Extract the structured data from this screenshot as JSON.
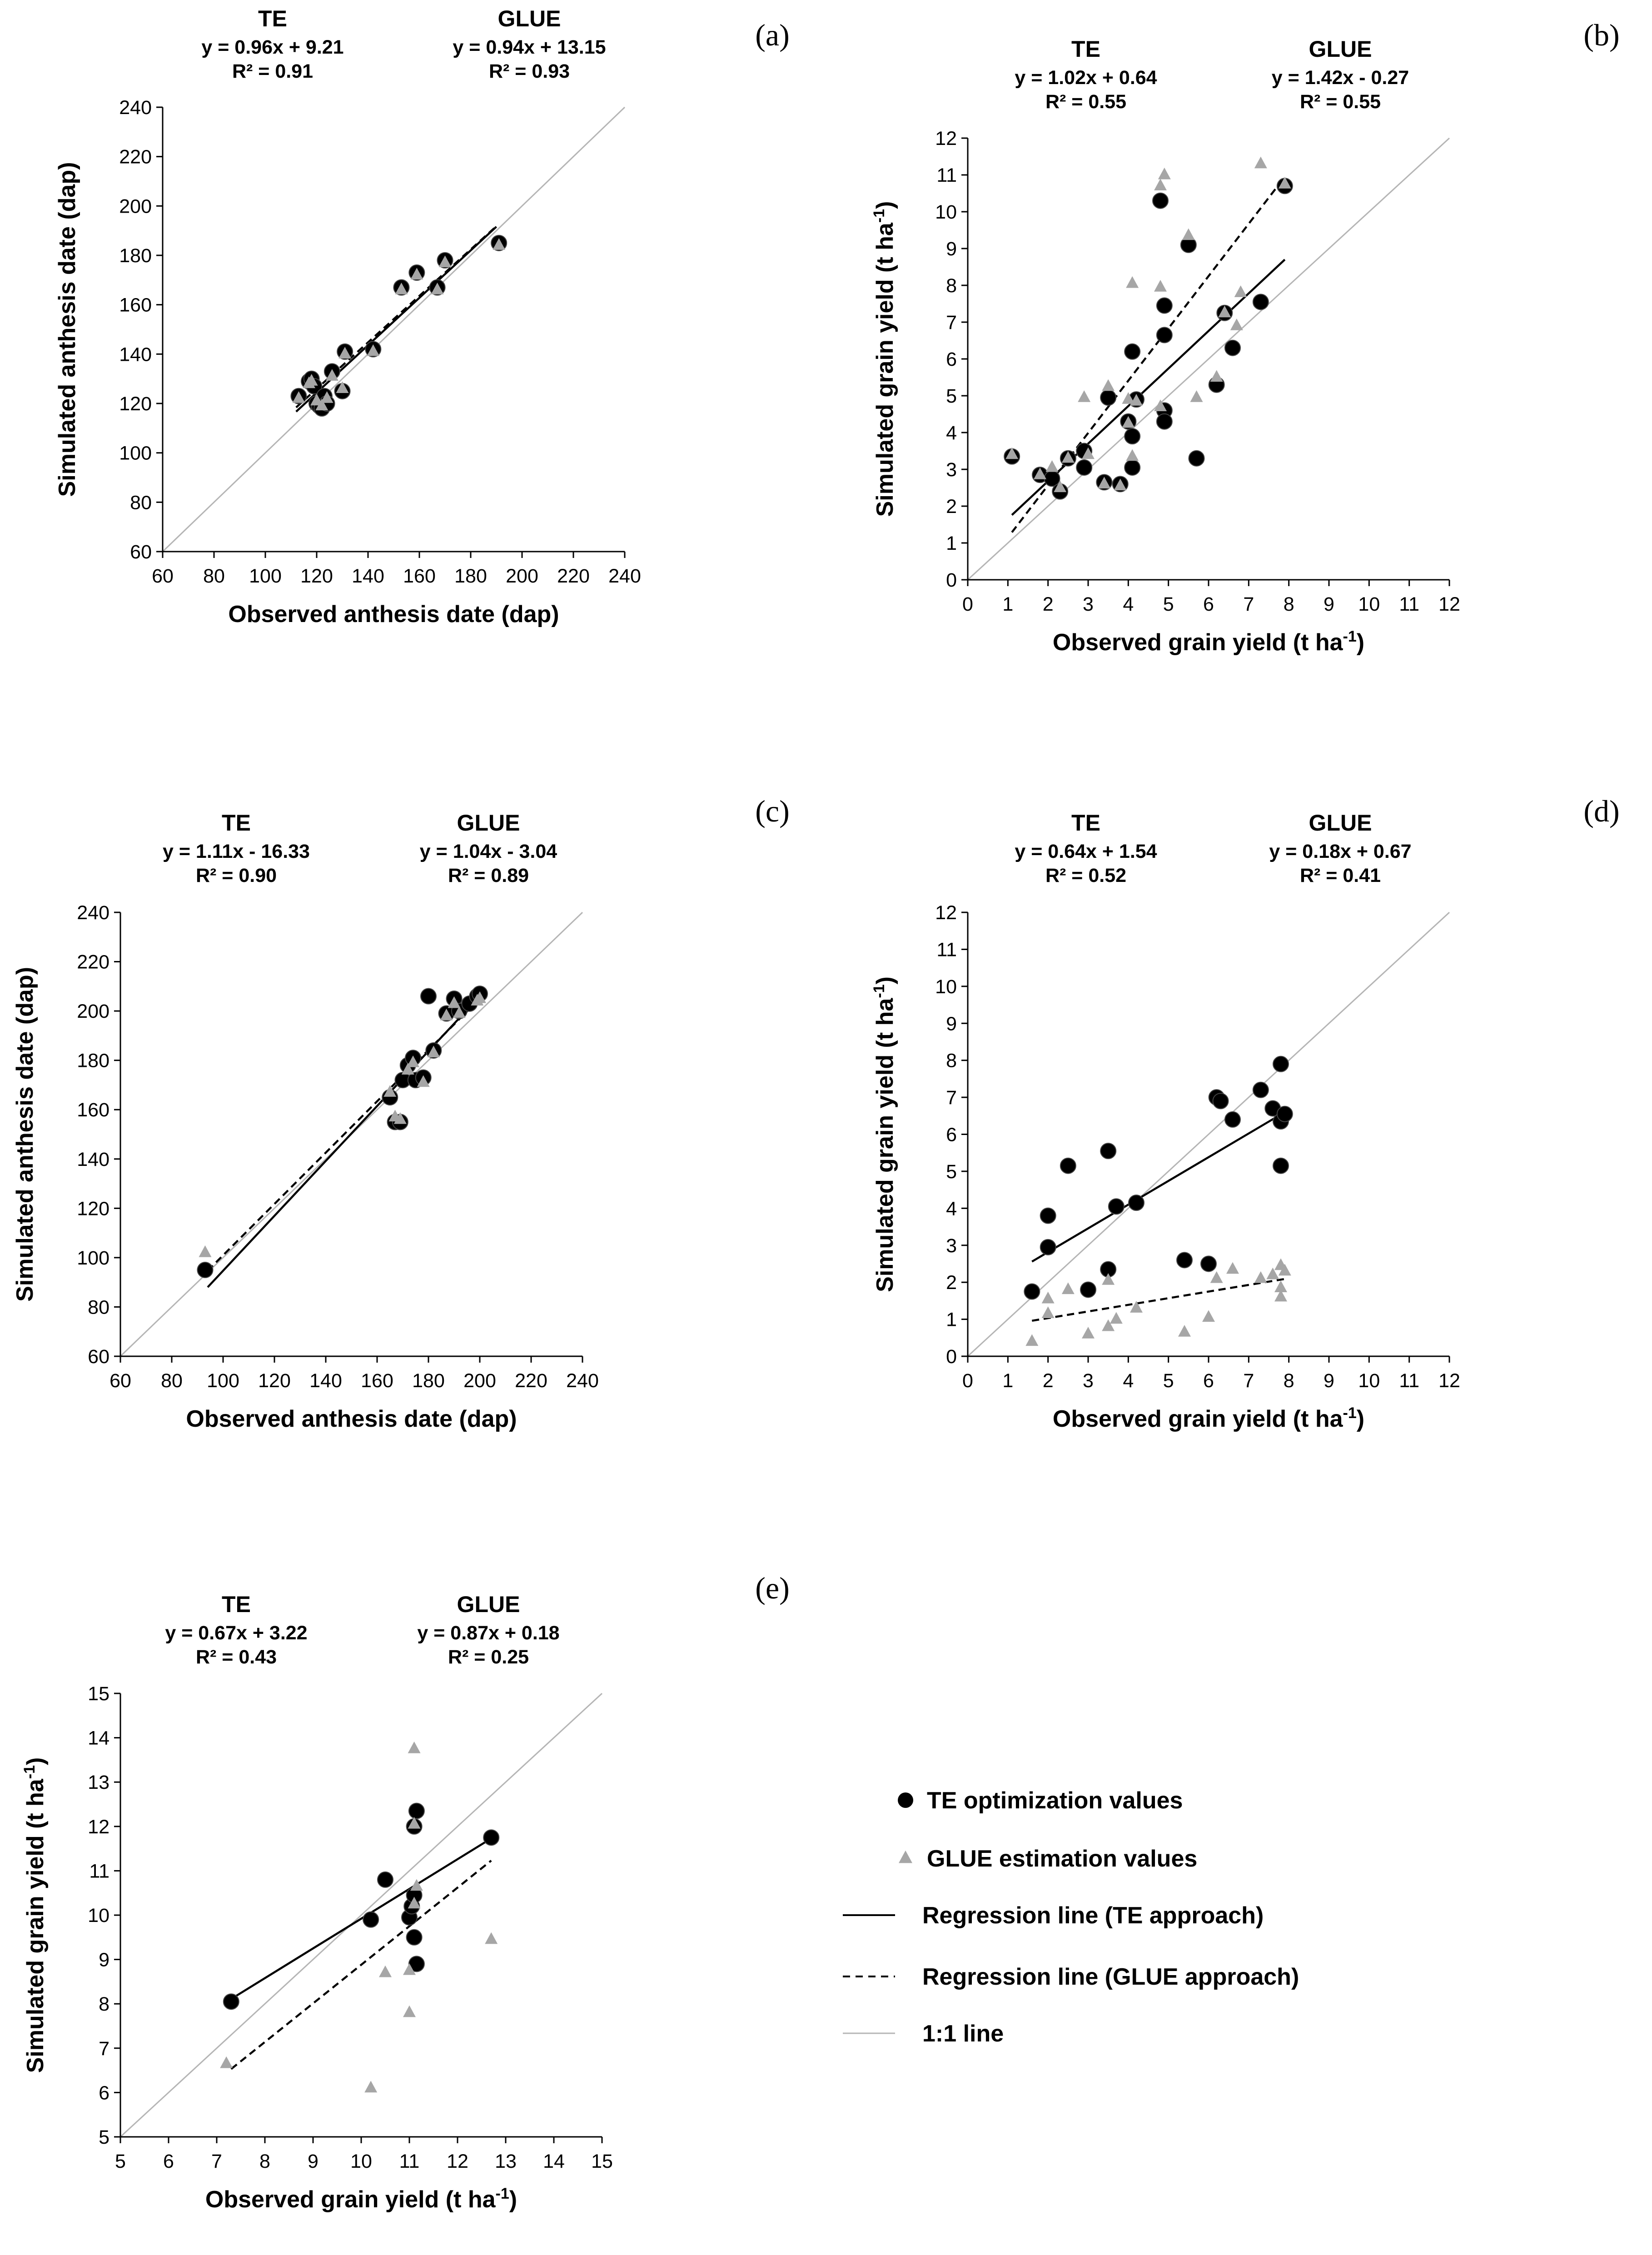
{
  "colors": {
    "te_point": "#000000",
    "glue_point": "#a6a6a6",
    "one_to_one": "#b5b5b5",
    "te_line": "#000000",
    "glue_line": "#000000"
  },
  "legend": {
    "items": [
      {
        "key": "te_points",
        "label": "TE optimization values",
        "icon": "black-circle"
      },
      {
        "key": "glue_points",
        "label": "GLUE estimation values",
        "icon": "gray-triangle"
      },
      {
        "key": "te_line",
        "label": "Regression line (TE approach)",
        "icon": "solid-line"
      },
      {
        "key": "glue_line",
        "label": "Regression line (GLUE approach)",
        "icon": "dashed-line"
      },
      {
        "key": "one_to_one",
        "label": "1:1 line",
        "icon": "gray-line"
      }
    ]
  },
  "chart_data": [
    {
      "id": "a",
      "letter": "(a)",
      "type": "scatter",
      "xlabel": "Observed anthesis date (dap)",
      "ylabel": "Simulated anthesis date (dap)",
      "xlim": [
        60,
        240
      ],
      "ylim": [
        60,
        240
      ],
      "xticks": [
        60,
        80,
        100,
        120,
        140,
        160,
        180,
        200,
        220,
        240
      ],
      "yticks": [
        60,
        80,
        100,
        120,
        140,
        160,
        180,
        200,
        220,
        240
      ],
      "te": {
        "name": "TE",
        "equation": "y = 0.96x + 9.21",
        "r2": "R² = 0.91",
        "line": [
          [
            112,
            116.7
          ],
          [
            190,
            191.6
          ]
        ],
        "points": [
          [
            113,
            123
          ],
          [
            117,
            129
          ],
          [
            118,
            130
          ],
          [
            119,
            127
          ],
          [
            120,
            120
          ],
          [
            121,
            119
          ],
          [
            122,
            118
          ],
          [
            123,
            123
          ],
          [
            124,
            120
          ],
          [
            126,
            133
          ],
          [
            130,
            125
          ],
          [
            131,
            141
          ],
          [
            142,
            142
          ],
          [
            153,
            167
          ],
          [
            159,
            173
          ],
          [
            167,
            167
          ],
          [
            170,
            178
          ],
          [
            191,
            185
          ]
        ]
      },
      "glue": {
        "name": "GLUE",
        "equation": "y = 0.94x + 13.15",
        "r2": "R² = 0.93",
        "line": [
          [
            112,
            118.4
          ],
          [
            190,
            191.8
          ]
        ],
        "points": [
          [
            113,
            122
          ],
          [
            117,
            128
          ],
          [
            118,
            129
          ],
          [
            120,
            121
          ],
          [
            122,
            119
          ],
          [
            124,
            122
          ],
          [
            126,
            131
          ],
          [
            130,
            126
          ],
          [
            131,
            140
          ],
          [
            142,
            141
          ],
          [
            153,
            166
          ],
          [
            159,
            172
          ],
          [
            167,
            166
          ],
          [
            170,
            177
          ],
          [
            191,
            184
          ]
        ]
      }
    },
    {
      "id": "b",
      "letter": "(b)",
      "type": "scatter",
      "xlabel": "Observed grain yield (t ha-1)",
      "ylabel": "Simulated grain yield (t ha-1)",
      "xlim": [
        0,
        12
      ],
      "ylim": [
        0,
        12
      ],
      "xticks": [
        0,
        1,
        2,
        3,
        4,
        5,
        6,
        7,
        8,
        9,
        10,
        11,
        12
      ],
      "yticks": [
        0,
        1,
        2,
        3,
        4,
        5,
        6,
        7,
        8,
        9,
        10,
        11,
        12
      ],
      "te": {
        "name": "TE",
        "equation": "y = 1.02x + 0.64",
        "r2": "R² = 0.55",
        "line": [
          [
            1.1,
            1.76
          ],
          [
            7.9,
            8.7
          ]
        ],
        "points": [
          [
            1.1,
            3.35
          ],
          [
            1.8,
            2.85
          ],
          [
            2.1,
            2.75
          ],
          [
            2.3,
            2.4
          ],
          [
            2.5,
            3.3
          ],
          [
            2.9,
            3.05
          ],
          [
            2.9,
            3.5
          ],
          [
            3.4,
            2.65
          ],
          [
            3.5,
            4.95
          ],
          [
            3.8,
            2.6
          ],
          [
            4.0,
            4.3
          ],
          [
            4.1,
            3.9
          ],
          [
            4.1,
            6.2
          ],
          [
            4.1,
            3.05
          ],
          [
            4.2,
            4.9
          ],
          [
            4.8,
            10.3
          ],
          [
            4.9,
            6.65
          ],
          [
            4.9,
            7.45
          ],
          [
            4.9,
            4.6
          ],
          [
            4.9,
            4.3
          ],
          [
            5.5,
            9.1
          ],
          [
            5.7,
            3.3
          ],
          [
            6.2,
            5.3
          ],
          [
            6.4,
            7.25
          ],
          [
            6.6,
            6.3
          ],
          [
            7.3,
            7.55
          ],
          [
            7.9,
            10.7
          ]
        ]
      },
      "glue": {
        "name": "GLUE",
        "equation": "y = 1.42x - 0.27",
        "r2": "R² = 0.55",
        "line": [
          [
            1.1,
            1.29
          ],
          [
            7.9,
            10.95
          ]
        ],
        "points": [
          [
            1.1,
            3.4
          ],
          [
            1.8,
            2.85
          ],
          [
            2.1,
            3.05
          ],
          [
            2.3,
            2.5
          ],
          [
            2.5,
            3.3
          ],
          [
            2.9,
            4.95
          ],
          [
            3.0,
            3.4
          ],
          [
            3.4,
            2.6
          ],
          [
            3.5,
            5.25
          ],
          [
            3.8,
            2.55
          ],
          [
            4.0,
            4.25
          ],
          [
            4.0,
            4.9
          ],
          [
            4.1,
            8.05
          ],
          [
            4.1,
            3.35
          ],
          [
            4.2,
            4.85
          ],
          [
            4.8,
            10.7
          ],
          [
            4.8,
            7.95
          ],
          [
            4.9,
            11.0
          ],
          [
            4.8,
            4.7
          ],
          [
            5.5,
            9.35
          ],
          [
            5.7,
            4.95
          ],
          [
            6.2,
            5.5
          ],
          [
            6.4,
            7.25
          ],
          [
            6.7,
            6.9
          ],
          [
            6.8,
            7.8
          ],
          [
            7.3,
            11.3
          ],
          [
            7.9,
            10.75
          ]
        ]
      }
    },
    {
      "id": "c",
      "letter": "(c)",
      "type": "scatter",
      "xlabel": "Observed anthesis date (dap)",
      "ylabel": "Simulated anthesis date (dap)",
      "xlim": [
        60,
        240
      ],
      "ylim": [
        60,
        240
      ],
      "xticks": [
        60,
        80,
        100,
        120,
        140,
        160,
        180,
        200,
        220,
        240
      ],
      "yticks": [
        60,
        80,
        100,
        120,
        140,
        160,
        180,
        200,
        220,
        240
      ],
      "te": {
        "name": "TE",
        "equation": "y = 1.11x - 16.33",
        "r2": "R² = 0.90",
        "line": [
          [
            94,
            88
          ],
          [
            200,
            206
          ]
        ],
        "points": [
          [
            93,
            95
          ],
          [
            165,
            165
          ],
          [
            167,
            155
          ],
          [
            169,
            155
          ],
          [
            170,
            172
          ],
          [
            172,
            178
          ],
          [
            174,
            181
          ],
          [
            175,
            172
          ],
          [
            178,
            173
          ],
          [
            180,
            206
          ],
          [
            182,
            184
          ],
          [
            187,
            199
          ],
          [
            190,
            205
          ],
          [
            192,
            200
          ],
          [
            196,
            203
          ],
          [
            199,
            206
          ],
          [
            200,
            207
          ]
        ]
      },
      "glue": {
        "name": "GLUE",
        "equation": "y = 1.04x - 3.04",
        "r2": "R² = 0.89",
        "line": [
          [
            94,
            94.7
          ],
          [
            200,
            205
          ]
        ],
        "points": [
          [
            93,
            102
          ],
          [
            165,
            167
          ],
          [
            167,
            157
          ],
          [
            169,
            156
          ],
          [
            172,
            176
          ],
          [
            174,
            179
          ],
          [
            178,
            171
          ],
          [
            182,
            183
          ],
          [
            187,
            198
          ],
          [
            190,
            203
          ],
          [
            192,
            199
          ],
          [
            199,
            204
          ],
          [
            200,
            205
          ]
        ]
      }
    },
    {
      "id": "d",
      "letter": "(d)",
      "type": "scatter",
      "xlabel": "Observed grain yield (t ha-1)",
      "ylabel": "Simulated grain yield (t ha-1)",
      "xlim": [
        0,
        12
      ],
      "ylim": [
        0,
        12
      ],
      "xticks": [
        0,
        1,
        2,
        3,
        4,
        5,
        6,
        7,
        8,
        9,
        10,
        11,
        12
      ],
      "yticks": [
        0,
        1,
        2,
        3,
        4,
        5,
        6,
        7,
        8,
        9,
        10,
        11,
        12
      ],
      "te": {
        "name": "TE",
        "equation": "y = 0.64x + 1.54",
        "r2": "R² = 0.52",
        "line": [
          [
            1.6,
            2.56
          ],
          [
            7.9,
            6.6
          ]
        ],
        "points": [
          [
            1.6,
            1.75
          ],
          [
            2.0,
            3.8
          ],
          [
            2.0,
            2.95
          ],
          [
            2.5,
            5.15
          ],
          [
            3.0,
            1.8
          ],
          [
            3.5,
            5.55
          ],
          [
            3.5,
            2.35
          ],
          [
            3.7,
            4.05
          ],
          [
            4.2,
            4.15
          ],
          [
            5.4,
            2.6
          ],
          [
            6.0,
            2.5
          ],
          [
            6.2,
            7.0
          ],
          [
            6.3,
            6.9
          ],
          [
            6.6,
            6.4
          ],
          [
            7.3,
            7.2
          ],
          [
            7.6,
            6.7
          ],
          [
            7.8,
            6.35
          ],
          [
            7.8,
            5.15
          ],
          [
            7.8,
            7.9
          ],
          [
            7.9,
            6.55
          ]
        ]
      },
      "glue": {
        "name": "GLUE",
        "equation": "y = 0.18x + 0.67",
        "r2": "R² = 0.41",
        "line": [
          [
            1.6,
            0.96
          ],
          [
            7.9,
            2.09
          ]
        ],
        "points": [
          [
            1.6,
            0.4
          ],
          [
            2.0,
            1.55
          ],
          [
            2.0,
            1.15
          ],
          [
            2.5,
            1.8
          ],
          [
            3.0,
            0.6
          ],
          [
            3.5,
            2.05
          ],
          [
            3.5,
            0.8
          ],
          [
            3.7,
            1.0
          ],
          [
            4.2,
            1.3
          ],
          [
            5.4,
            0.65
          ],
          [
            6.0,
            1.05
          ],
          [
            6.2,
            2.1
          ],
          [
            6.6,
            2.35
          ],
          [
            7.3,
            2.1
          ],
          [
            7.6,
            2.2
          ],
          [
            7.8,
            2.45
          ],
          [
            7.8,
            1.6
          ],
          [
            7.8,
            1.85
          ],
          [
            7.9,
            2.3
          ]
        ]
      }
    },
    {
      "id": "e",
      "letter": "(e)",
      "type": "scatter",
      "xlabel": "Observed grain yield (t ha-1)",
      "ylabel": "Simulated grain yield (t ha-1)",
      "xlim": [
        5,
        15
      ],
      "ylim": [
        5,
        15
      ],
      "xticks": [
        5,
        6,
        7,
        8,
        9,
        10,
        11,
        12,
        13,
        14,
        15
      ],
      "yticks": [
        5,
        6,
        7,
        8,
        9,
        10,
        11,
        12,
        13,
        14,
        15
      ],
      "te": {
        "name": "TE",
        "equation": "y = 0.67x + 3.22",
        "r2": "R² = 0.43",
        "line": [
          [
            7.3,
            8.11
          ],
          [
            12.7,
            11.73
          ]
        ],
        "points": [
          [
            7.3,
            8.05
          ],
          [
            10.2,
            9.9
          ],
          [
            10.5,
            10.8
          ],
          [
            11.0,
            9.95
          ],
          [
            11.05,
            10.2
          ],
          [
            11.1,
            9.5
          ],
          [
            11.1,
            12.0
          ],
          [
            11.15,
            12.35
          ],
          [
            11.15,
            8.9
          ],
          [
            11.1,
            10.45
          ],
          [
            12.7,
            11.75
          ]
        ]
      },
      "glue": {
        "name": "GLUE",
        "equation": "y = 0.87x + 0.18",
        "r2": "R² = 0.25",
        "line": [
          [
            7.3,
            6.53
          ],
          [
            12.7,
            11.23
          ]
        ],
        "points": [
          [
            7.2,
            6.65
          ],
          [
            10.2,
            6.1
          ],
          [
            10.5,
            8.7
          ],
          [
            11.0,
            7.8
          ],
          [
            11.0,
            8.75
          ],
          [
            11.1,
            10.25
          ],
          [
            11.1,
            12.05
          ],
          [
            11.1,
            13.75
          ],
          [
            11.15,
            10.65
          ],
          [
            12.7,
            9.45
          ]
        ]
      }
    }
  ]
}
